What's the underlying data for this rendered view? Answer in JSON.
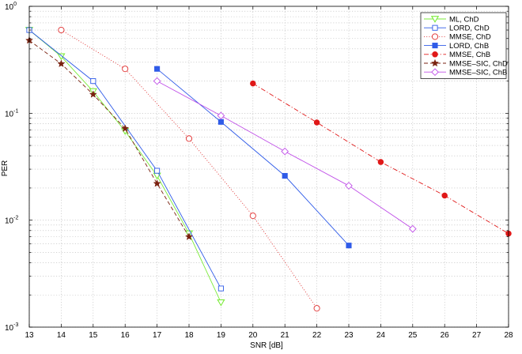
{
  "chart_data": {
    "type": "line",
    "title": "",
    "xlabel": "SNR [dB]",
    "ylabel": "PER",
    "xlim": [
      13,
      28
    ],
    "ylim": [
      0.001,
      1
    ],
    "yscale": "log",
    "grid": true,
    "legend_position": "top-right",
    "x_ticks": [
      "13",
      "14",
      "15",
      "16",
      "17",
      "18",
      "19",
      "20",
      "21",
      "22",
      "23",
      "24",
      "25",
      "26",
      "27",
      "28"
    ],
    "y_ticks": [
      {
        "base": "10",
        "exp": "-3",
        "value": 0.001
      },
      {
        "base": "10",
        "exp": "-2",
        "value": 0.01
      },
      {
        "base": "10",
        "exp": "-1",
        "value": 0.1
      },
      {
        "base": "10",
        "exp": "0",
        "value": 1
      }
    ],
    "series": [
      {
        "name": "ML, ChD",
        "color": "#7CEB3B",
        "dash": "solid",
        "marker": "triangle-down",
        "filled": false,
        "x": [
          13,
          14,
          15,
          16,
          17,
          18,
          19
        ],
        "y": [
          0.6,
          0.34,
          0.16,
          0.068,
          0.026,
          0.0075,
          0.0017
        ]
      },
      {
        "name": "LORD, ChD",
        "color": "#2F5BE8",
        "dash": "solid",
        "marker": "square",
        "filled": false,
        "x": [
          13,
          15,
          17,
          19
        ],
        "y": [
          0.6,
          0.2,
          0.029,
          0.0023
        ]
      },
      {
        "name": "MMSE, ChD",
        "color": "#E03030",
        "dash": "dotted",
        "marker": "circle",
        "filled": false,
        "x": [
          14,
          16,
          18,
          20,
          22
        ],
        "y": [
          0.6,
          0.26,
          0.058,
          0.011,
          0.0015
        ]
      },
      {
        "name": "LORD, ChB",
        "color": "#2F5BE8",
        "dash": "solid",
        "marker": "square",
        "filled": true,
        "x": [
          17,
          19,
          21,
          23
        ],
        "y": [
          0.26,
          0.083,
          0.026,
          0.0058
        ]
      },
      {
        "name": "MMSE, ChB",
        "color": "#E01818",
        "dash": "dashdot",
        "marker": "circle",
        "filled": true,
        "x": [
          20,
          22,
          24,
          26,
          28
        ],
        "y": [
          0.19,
          0.082,
          0.035,
          0.017,
          0.0075
        ]
      },
      {
        "name": "MMSE–SIC, ChD",
        "color": "#7A2210",
        "dash": "dashed",
        "marker": "star",
        "filled": true,
        "x": [
          13,
          14,
          15,
          16,
          17,
          18
        ],
        "y": [
          0.48,
          0.29,
          0.15,
          0.072,
          0.022,
          0.007
        ]
      },
      {
        "name": "MMSE–SIC, ChB",
        "color": "#C050E8",
        "dash": "solid",
        "marker": "diamond",
        "filled": false,
        "x": [
          17,
          19,
          21,
          23,
          25
        ],
        "y": [
          0.2,
          0.095,
          0.044,
          0.021,
          0.0083
        ]
      }
    ]
  }
}
